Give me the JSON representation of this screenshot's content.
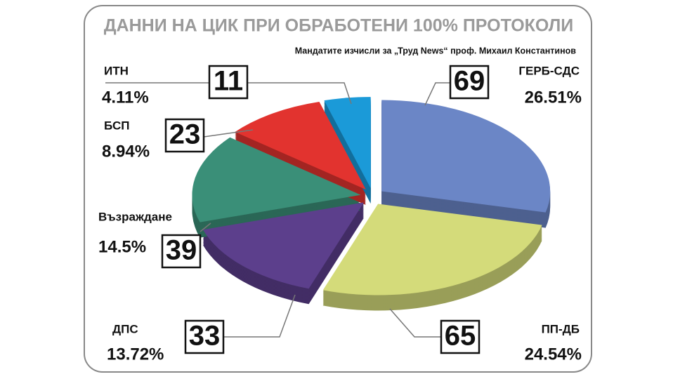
{
  "chart_data": {
    "type": "pie",
    "title": "ДАННИ НА ЦИК ПРИ ОБРАБОТЕНИ 100% ПРОТОКОЛИ",
    "subtitle": "Мандатите изчисли за „Труд News“ проф. Михаил Константинов",
    "categories": [
      "ГЕРБ-СДС",
      "ПП-ДБ",
      "ДПС",
      "Възраждане",
      "БСП",
      "ИТН"
    ],
    "values": [
      26.51,
      24.54,
      13.72,
      14.5,
      8.94,
      4.11
    ],
    "value_labels": [
      "26.51%",
      "24.54%",
      "13.72%",
      "14.5%",
      "8.94%",
      "4.11%"
    ],
    "seats": [
      69,
      65,
      33,
      39,
      23,
      11
    ],
    "colors": [
      "#6b86c6",
      "#d4db7a",
      "#5c3f8c",
      "#3a8f78",
      "#e2332f",
      "#1b9ad8"
    ]
  }
}
